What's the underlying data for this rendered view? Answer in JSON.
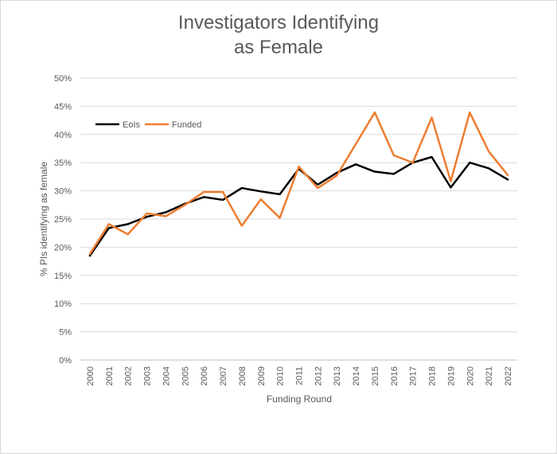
{
  "chart_data": {
    "type": "line",
    "title_lines": [
      "Investigators Identifying",
      "as Female"
    ],
    "xlabel": "Funding Round",
    "ylabel": "%  PIs identifying as female",
    "ylim": [
      0,
      50
    ],
    "ytick_step": 5,
    "ytick_labels": [
      "0%",
      "5%",
      "10%",
      "15%",
      "20%",
      "25%",
      "30%",
      "35%",
      "40%",
      "45%",
      "50%"
    ],
    "grid": true,
    "legend_position": "top-left",
    "categories": [
      "2000",
      "2001",
      "2002",
      "2003",
      "2004",
      "2005",
      "2006",
      "2007",
      "2008",
      "2009",
      "2010",
      "2011",
      "2012",
      "2013",
      "2014",
      "2015",
      "2016",
      "2017",
      "2018",
      "2019",
      "2020",
      "2021",
      "2022"
    ],
    "series": [
      {
        "name": "EoIs",
        "color": "#000000",
        "values": [
          18.5,
          23.4,
          24.1,
          25.4,
          26.2,
          27.7,
          28.9,
          28.4,
          30.5,
          29.9,
          29.4,
          33.9,
          31.1,
          33.2,
          34.7,
          33.4,
          33.0,
          35.0,
          36.0,
          30.6,
          35.0,
          34.0,
          32.0
        ]
      },
      {
        "name": "Funded",
        "color": "#ED7D31",
        "values": [
          18.8,
          24.1,
          22.3,
          26.0,
          25.5,
          27.5,
          29.8,
          29.8,
          23.8,
          28.5,
          25.2,
          34.3,
          30.5,
          32.7,
          38.3,
          43.9,
          36.3,
          35.0,
          43.0,
          31.7,
          43.9,
          37.0,
          32.8
        ]
      }
    ]
  }
}
